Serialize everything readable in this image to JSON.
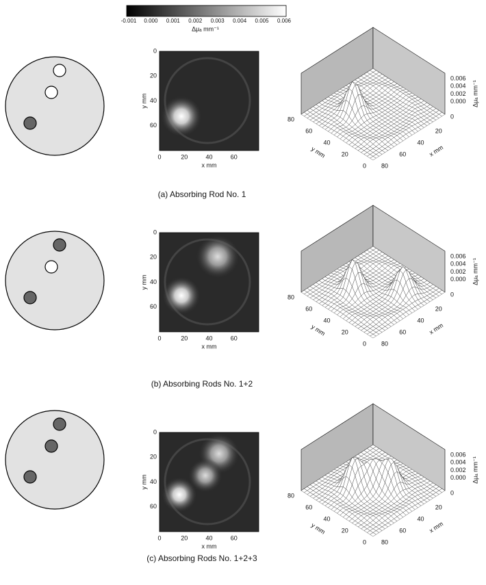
{
  "colorbar": {
    "ticks": [
      "-0.001",
      "0.000",
      "0.001",
      "0.002",
      "0.003",
      "0.004",
      "0.005",
      "0.006"
    ],
    "label": "Δμₐ mm⁻¹"
  },
  "panels": [
    {
      "caption": "(a) Absorbing Rod No. 1",
      "image": {
        "xticks": [
          "0",
          "20",
          "40",
          "60"
        ],
        "yticks": [
          "0",
          "20",
          "40",
          "60"
        ],
        "xlabel": "x mm",
        "ylabel": "y mm"
      },
      "surface": {
        "zticks": [
          "0.006",
          "0.004",
          "0.002",
          "0.000",
          "0"
        ],
        "zlabel": "Δμₐ mm⁻¹",
        "yticks": [
          "80",
          "60",
          "40",
          "20",
          "0"
        ],
        "ylabel": "y mm",
        "xticks": [
          "20",
          "40",
          "60",
          "80"
        ],
        "xlabel": "x mm"
      }
    },
    {
      "caption": "(b) Absorbing Rods No. 1+2",
      "image": {
        "xticks": [
          "0",
          "20",
          "40",
          "60"
        ],
        "yticks": [
          "0",
          "20",
          "40",
          "60"
        ],
        "xlabel": "x mm",
        "ylabel": "y mm"
      },
      "surface": {
        "zticks": [
          "0.006",
          "0.004",
          "0.002",
          "0.000",
          "0"
        ],
        "zlabel": "Δμₐ mm⁻¹",
        "yticks": [
          "80",
          "60",
          "40",
          "20",
          "0"
        ],
        "ylabel": "y mm",
        "xticks": [
          "20",
          "40",
          "60",
          "80"
        ],
        "xlabel": "x mm"
      }
    },
    {
      "caption": "(c) Absorbing Rods No. 1+2+3",
      "image": {
        "xticks": [
          "0",
          "20",
          "40",
          "60"
        ],
        "yticks": [
          "0",
          "20",
          "40",
          "60"
        ],
        "xlabel": "x mm",
        "ylabel": "y mm"
      },
      "surface": {
        "zticks": [
          "0.006",
          "0.004",
          "0.002",
          "0.000",
          "0"
        ],
        "zlabel": "Δμₐ mm⁻¹",
        "yticks": [
          "80",
          "60",
          "40",
          "20",
          "0"
        ],
        "ylabel": "y mm",
        "xticks": [
          "20",
          "40",
          "60",
          "80"
        ],
        "xlabel": "x mm"
      }
    }
  ]
}
